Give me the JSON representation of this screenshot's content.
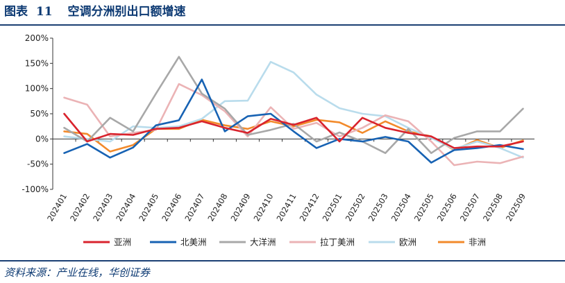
{
  "figure": {
    "label": "图表",
    "number": "11",
    "title": "空调分洲别出口额增速",
    "source": "资料来源：产业在线，华创证券"
  },
  "chart_data": {
    "type": "line",
    "categories": [
      "202401",
      "202402",
      "202403",
      "202404",
      "202405",
      "202406",
      "202407",
      "202408",
      "202409",
      "202410",
      "202411",
      "202412",
      "202501",
      "202502",
      "202503",
      "202504",
      "202505",
      "202506",
      "202507",
      "202508",
      "202509"
    ],
    "ylim": [
      -100,
      200
    ],
    "yticks": [
      -100,
      -50,
      0,
      50,
      100,
      150,
      200
    ],
    "ytick_labels": [
      "-100%",
      "-50%",
      "0%",
      "50%",
      "100%",
      "150%",
      "200%"
    ],
    "y_unit": "%",
    "grid": false,
    "legend_position": "bottom",
    "series": [
      {
        "name": "亚洲",
        "color": "#d9232d",
        "values": [
          50,
          -5,
          10,
          8,
          20,
          22,
          35,
          22,
          12,
          40,
          28,
          42,
          -5,
          42,
          22,
          12,
          5,
          -18,
          -15,
          -15,
          -5
        ]
      },
      {
        "name": "北美洲",
        "color": "#1762b3",
        "values": [
          -28,
          -10,
          -37,
          -17,
          27,
          37,
          118,
          15,
          45,
          50,
          15,
          -18,
          0,
          -5,
          4,
          -5,
          -47,
          -22,
          -18,
          -12,
          -20
        ]
      },
      {
        "name": "大洋洲",
        "color": "#a8a8a8",
        "values": [
          22,
          -5,
          42,
          15,
          90,
          163,
          90,
          60,
          8,
          18,
          30,
          -5,
          13,
          -5,
          -28,
          20,
          -28,
          2,
          15,
          15,
          60
        ]
      },
      {
        "name": "拉丁美洲",
        "color": "#ebb3b5",
        "values": [
          82,
          68,
          5,
          12,
          18,
          109,
          87,
          55,
          5,
          63,
          20,
          32,
          5,
          22,
          47,
          35,
          -5,
          -52,
          -45,
          -48,
          -35
        ]
      },
      {
        "name": "欧洲",
        "color": "#b9dcec",
        "values": [
          5,
          0,
          -5,
          25,
          22,
          25,
          40,
          75,
          76,
          153,
          132,
          88,
          61,
          50,
          45,
          22,
          2,
          -20,
          -5,
          -18,
          -37
        ]
      },
      {
        "name": "非洲",
        "color": "#f28a2b",
        "values": [
          15,
          10,
          -25,
          -12,
          20,
          20,
          38,
          27,
          20,
          35,
          25,
          38,
          33,
          12,
          35,
          15,
          5,
          -22,
          -2,
          -18,
          -3
        ]
      }
    ]
  }
}
